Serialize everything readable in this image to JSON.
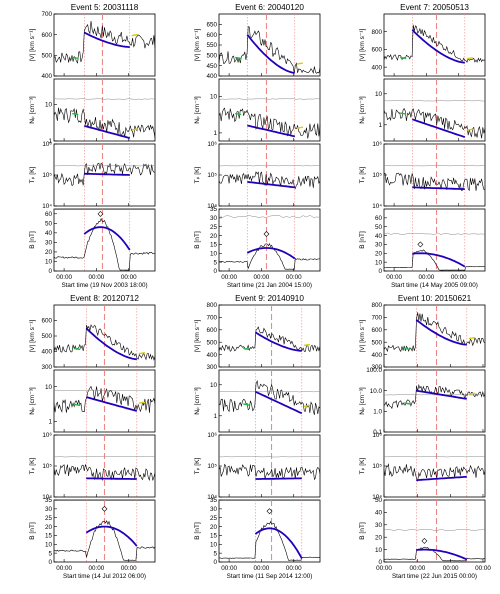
{
  "figure": {
    "panels": [
      {
        "title": "Event  5: 20031118",
        "xlabel": "Start time (19 Nov 2003 18:00)",
        "time_ticks": [
          "00:00",
          "00:00",
          "00:00"
        ]
      },
      {
        "title": "Event  6: 20040120",
        "xlabel": "Start time (21 Jan 2004 15:00)",
        "time_ticks": [
          "00:00",
          "00:00",
          "00:00"
        ]
      },
      {
        "title": "Event  7: 20050513",
        "xlabel": "Start time (14 May 2005 09:00)",
        "time_ticks": [
          "00:00",
          "00:00",
          "00:00"
        ]
      },
      {
        "title": "Event  8: 20120712",
        "xlabel": "Start time (14 Jul 2012 06:00)",
        "time_ticks": [
          "00:00",
          "00:00",
          "00:00"
        ]
      },
      {
        "title": "Event  9: 20140910",
        "xlabel": "Start time (11 Sep 2014 12:00)",
        "time_ticks": [
          "00:00",
          "00:00",
          "00:00"
        ]
      },
      {
        "title": "Event 10: 20150621",
        "xlabel": "Start time (22 Jun 2015 00:00)",
        "time_ticks": [
          "00:00",
          "00:00",
          "00:00",
          "00:00"
        ]
      }
    ],
    "row_labels": [
      "|V| [km s⁻¹]",
      "Nₚ [cm⁻³]",
      "Tₚ [K]",
      "B [nT]"
    ],
    "colors": {
      "observed": "#000000",
      "model": "#2200bb",
      "upstream": "#22bb44",
      "downstream": "#ddcc00",
      "boundary": "#ee8888",
      "reference": "#888888"
    }
  },
  "chart_data": [
    {
      "type": "line",
      "title": "Event  5: 20031118",
      "xlabel": "Start time (19 Nov 2003 18:00)",
      "subplots": [
        {
          "ylabel": "|V| [km s⁻¹]",
          "scale": "linear",
          "ylim": [
            400,
            700
          ],
          "yticks": [
            "400",
            "500",
            "600",
            "700"
          ],
          "model_fit": {
            "x": [
              0.3,
              0.75
            ],
            "y": [
              610,
              540
            ]
          }
        },
        {
          "ylabel": "Nₚ [cm⁻³]",
          "scale": "log",
          "ylim": [
            1,
            50
          ],
          "yticks": [
            "1",
            "10"
          ],
          "model_fit": {
            "x": [
              0.3,
              0.75
            ],
            "y": [
              2.6,
              1.2
            ]
          }
        },
        {
          "ylabel": "Tₚ [K]",
          "scale": "log",
          "ylim": [
            10000,
            1000000
          ],
          "yticks": [
            "10⁴",
            "10⁵",
            "10⁶"
          ],
          "model_fit": {
            "x": [
              0.3,
              0.75
            ],
            "y": [
              110000,
              100000
            ]
          }
        },
        {
          "ylabel": "B [nT]",
          "scale": "linear",
          "ylim": [
            0,
            65
          ],
          "yticks": [
            "0",
            "10",
            "20",
            "30",
            "40",
            "50",
            "60"
          ],
          "model_fit": {
            "peak": 46,
            "peak_x": 0.46,
            "end": 22
          }
        }
      ]
    },
    {
      "type": "line",
      "title": "Event  6: 20040120",
      "xlabel": "Start time (21 Jan 2004 15:00)",
      "subplots": [
        {
          "ylabel": "|V| [km s⁻¹]",
          "scale": "linear",
          "ylim": [
            400,
            700
          ],
          "yticks": [
            "400",
            "450",
            "500",
            "550",
            "600",
            "650"
          ],
          "model_fit": {
            "x": [
              0.28,
              0.75
            ],
            "y": [
              600,
              415
            ]
          }
        },
        {
          "ylabel": "Nₚ [cm⁻³]",
          "scale": "log",
          "ylim": [
            0.6,
            30
          ],
          "yticks": [
            "1",
            "10"
          ],
          "model_fit": {
            "x": [
              0.28,
              0.75
            ],
            "y": [
              1.6,
              0.8
            ]
          }
        },
        {
          "ylabel": "Tₚ [K]",
          "scale": "log",
          "ylim": [
            10000,
            1000000
          ],
          "yticks": [
            "10⁴",
            "10⁵",
            "10⁶"
          ],
          "model_fit": {
            "x": [
              0.28,
              0.75
            ],
            "y": [
              60000,
              40000
            ]
          }
        },
        {
          "ylabel": "B [nT]",
          "scale": "linear",
          "ylim": [
            0,
            35
          ],
          "yticks": [
            "0",
            "5",
            "10",
            "15",
            "20",
            "25",
            "30",
            "35"
          ],
          "model_fit": {
            "peak": 13,
            "peak_x": 0.47,
            "end": 7
          }
        }
      ]
    },
    {
      "type": "line",
      "title": "Event  7: 20050513",
      "xlabel": "Start time (14 May 2005 09:00)",
      "subplots": [
        {
          "ylabel": "|V| [km s⁻¹]",
          "scale": "linear",
          "ylim": [
            300,
            1000
          ],
          "yticks": [
            "400",
            "600",
            "800"
          ],
          "model_fit": {
            "x": [
              0.28,
              0.8
            ],
            "y": [
              820,
              450
            ]
          }
        },
        {
          "ylabel": "Nₚ [cm⁻³]",
          "scale": "log",
          "ylim": [
            0.3,
            30
          ],
          "yticks": [
            "1",
            "10"
          ],
          "model_fit": {
            "x": [
              0.28,
              0.8
            ],
            "y": [
              1.5,
              0.4
            ]
          }
        },
        {
          "ylabel": "Tₚ [K]",
          "scale": "log",
          "ylim": [
            10000,
            1000000
          ],
          "yticks": [
            "10⁴",
            "10⁵",
            "10⁶"
          ],
          "model_fit": {
            "x": [
              0.28,
              0.8
            ],
            "y": [
              40000,
              35000
            ]
          }
        },
        {
          "ylabel": "B [nT]",
          "scale": "linear",
          "ylim": [
            0,
            70
          ],
          "yticks": [
            "0",
            "10",
            "20",
            "30",
            "40",
            "50",
            "60"
          ],
          "model_fit": {
            "peak": 20,
            "peak_x": 0.36,
            "end": 5
          }
        }
      ]
    },
    {
      "type": "line",
      "title": "Event  8: 20120712",
      "xlabel": "Start time (14 Jul 2012 06:00)",
      "subplots": [
        {
          "ylabel": "|V| [km s⁻¹]",
          "scale": "linear",
          "ylim": [
            300,
            700
          ],
          "yticks": [
            "300",
            "400",
            "500",
            "600"
          ],
          "model_fit": {
            "x": [
              0.32,
              0.82
            ],
            "y": [
              550,
              350
            ]
          }
        },
        {
          "ylabel": "Nₚ [cm⁻³]",
          "scale": "log",
          "ylim": [
            0.5,
            30
          ],
          "yticks": [
            "1",
            "10"
          ],
          "model_fit": {
            "x": [
              0.32,
              0.82
            ],
            "y": [
              5,
              2
            ]
          }
        },
        {
          "ylabel": "Tₚ [K]",
          "scale": "log",
          "ylim": [
            10000,
            1000000
          ],
          "yticks": [
            "10⁴",
            "10⁵",
            "10⁶"
          ],
          "model_fit": {
            "x": [
              0.32,
              0.82
            ],
            "y": [
              40000,
              38000
            ]
          }
        },
        {
          "ylabel": "B [nT]",
          "scale": "linear",
          "ylim": [
            0,
            35
          ],
          "yticks": [
            "0",
            "5",
            "10",
            "15",
            "20",
            "25",
            "30",
            "35"
          ],
          "model_fit": {
            "peak": 20,
            "peak_x": 0.5,
            "end": 9
          }
        }
      ]
    },
    {
      "type": "line",
      "title": "Event  9: 20140910",
      "xlabel": "Start time (11 Sep 2014 12:00)",
      "subplots": [
        {
          "ylabel": "|V| [km s⁻¹]",
          "scale": "linear",
          "ylim": [
            300,
            800
          ],
          "yticks": [
            "300",
            "400",
            "500",
            "600",
            "700",
            "800"
          ],
          "model_fit": {
            "x": [
              0.36,
              0.82
            ],
            "y": [
              580,
              430
            ]
          }
        },
        {
          "ylabel": "Nₚ [cm⁻³]",
          "scale": "log",
          "ylim": [
            0.3,
            30
          ],
          "yticks": [
            "1",
            "10"
          ],
          "model_fit": {
            "x": [
              0.36,
              0.82
            ],
            "y": [
              6,
              1.2
            ]
          }
        },
        {
          "ylabel": "Tₚ [K]",
          "scale": "log",
          "ylim": [
            10000,
            1000000
          ],
          "yticks": [
            "10⁴",
            "10⁵",
            "10⁶"
          ],
          "model_fit": {
            "x": [
              0.36,
              0.82
            ],
            "y": [
              38000,
              40000
            ]
          }
        },
        {
          "ylabel": "B [nT]",
          "scale": "linear",
          "ylim": [
            0,
            35
          ],
          "yticks": [
            "0",
            "5",
            "10",
            "15",
            "20",
            "25",
            "30",
            "35"
          ],
          "model_fit": {
            "peak": 19,
            "peak_x": 0.5,
            "end": 2
          }
        }
      ]
    },
    {
      "type": "line",
      "title": "Event 10: 20150621",
      "xlabel": "Start time (22 Jun 2015 00:00)",
      "subplots": [
        {
          "ylabel": "|V| [km s⁻¹]",
          "scale": "linear",
          "ylim": [
            300,
            800
          ],
          "yticks": [
            "300",
            "400",
            "500",
            "600",
            "700",
            "800"
          ],
          "model_fit": {
            "x": [
              0.32,
              0.82
            ],
            "y": [
              680,
              480
            ]
          }
        },
        {
          "ylabel": "Nₚ [cm⁻³]",
          "scale": "log",
          "ylim": [
            0.1,
            100
          ],
          "yticks": [
            "0.1",
            "1.0",
            "10.0",
            "100.0"
          ],
          "model_fit": {
            "x": [
              0.32,
              0.82
            ],
            "y": [
              10,
              4
            ]
          }
        },
        {
          "ylabel": "Tₚ [K]",
          "scale": "log",
          "ylim": [
            10000,
            1000000
          ],
          "yticks": [
            "10⁴",
            "10⁵",
            "10⁶"
          ],
          "model_fit": {
            "x": [
              0.32,
              0.82
            ],
            "y": [
              35000,
              45000
            ]
          }
        },
        {
          "ylabel": "B [nT]",
          "scale": "linear",
          "ylim": [
            0,
            50
          ],
          "yticks": [
            "0",
            "10",
            "20",
            "30",
            "40",
            "50"
          ],
          "model_fit": {
            "peak": 10,
            "peak_x": 0.4,
            "end": 2
          }
        }
      ]
    }
  ]
}
